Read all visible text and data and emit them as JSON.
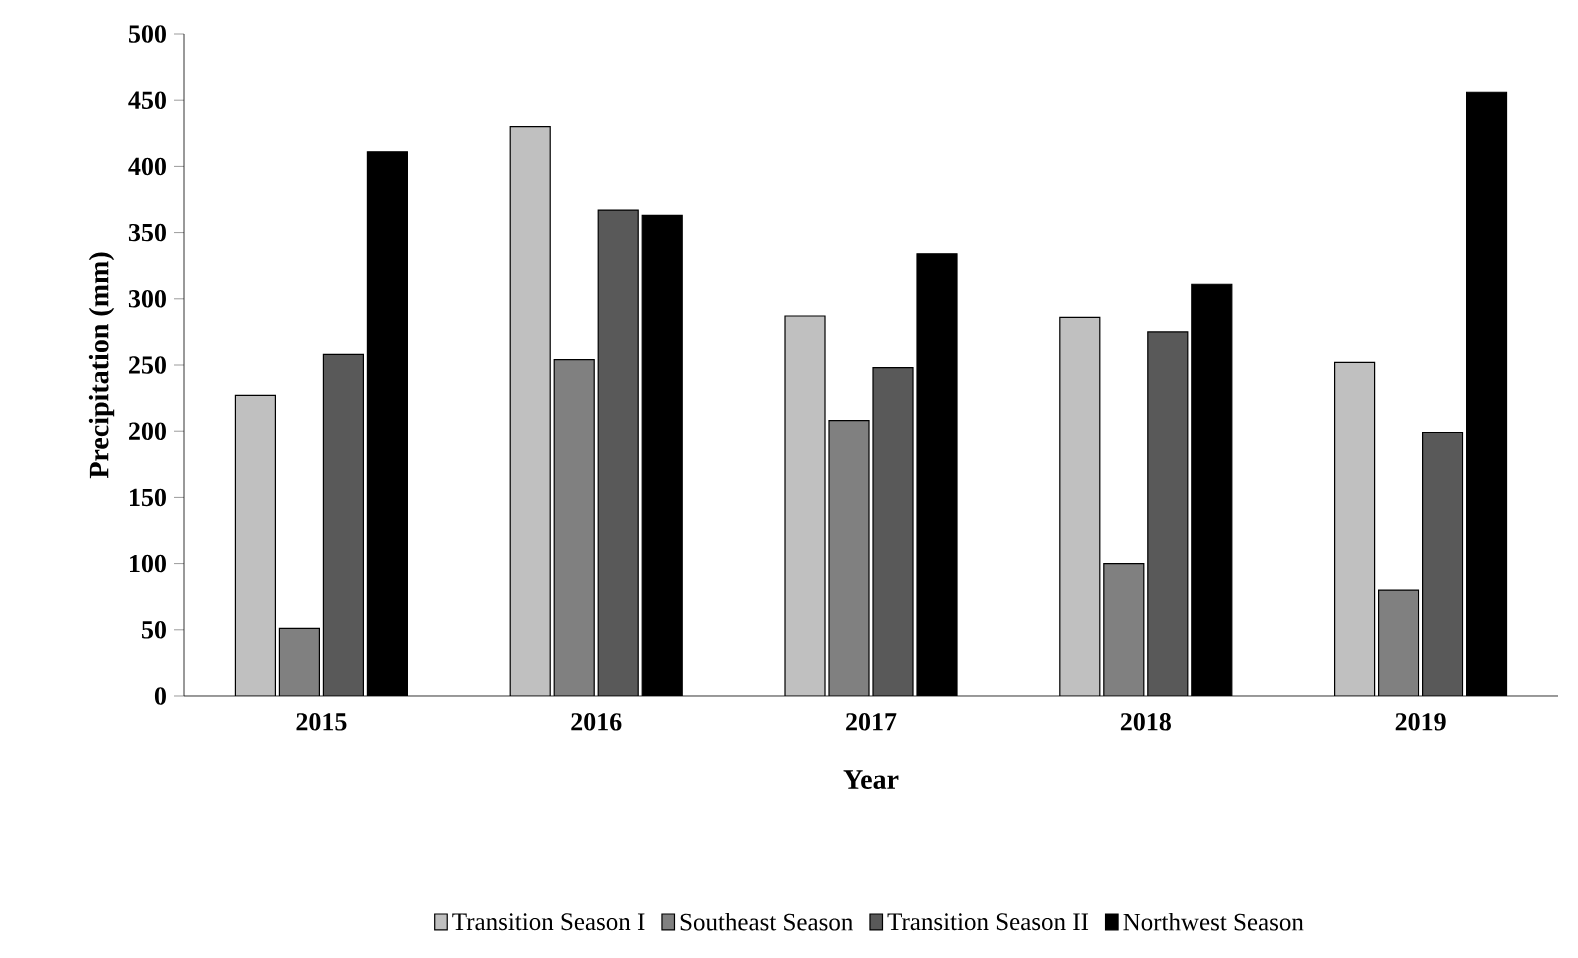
{
  "chart_data": {
    "type": "bar",
    "xlabel": "Year",
    "ylabel": "Precipitation (mm)",
    "categories": [
      "2015",
      "2016",
      "2017",
      "2018",
      "2019"
    ],
    "series": [
      {
        "name": "Transition Season I",
        "color": "#c0c0c0",
        "values": [
          227,
          430,
          287,
          286,
          252
        ]
      },
      {
        "name": "Southeast Season",
        "color": "#808080",
        "values": [
          51,
          254,
          208,
          100,
          80
        ]
      },
      {
        "name": "Transition Season II",
        "color": "#595959",
        "values": [
          258,
          367,
          248,
          275,
          199
        ]
      },
      {
        "name": "Northwest Season",
        "color": "#000000",
        "values": [
          411,
          363,
          334,
          311,
          456
        ]
      }
    ],
    "ylim": [
      0,
      500
    ],
    "yticks": [
      0,
      50,
      100,
      150,
      200,
      250,
      300,
      350,
      400,
      450,
      500
    ],
    "grid": false,
    "legend": "bottom"
  }
}
